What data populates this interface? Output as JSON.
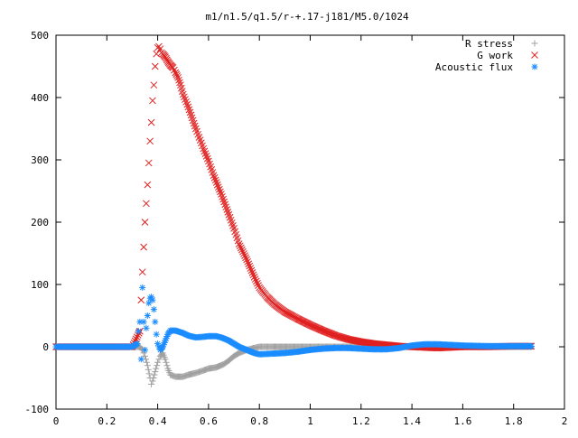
{
  "chart_data": {
    "type": "scatter",
    "title": "m1/n1.5/q1.5/r-+.17-j181/M5.0/1024",
    "xlabel": "",
    "ylabel": "",
    "xlim": [
      0,
      2
    ],
    "ylim": [
      -100,
      500
    ],
    "xticks": [
      0,
      0.2,
      0.4,
      0.6,
      0.8,
      1,
      1.2,
      1.4,
      1.6,
      1.8,
      2
    ],
    "xtick_labels": [
      "0",
      "0.2",
      "0.4",
      "0.6",
      "0.8",
      "1",
      "1.2",
      "1.4",
      "1.6",
      "1.8",
      "2"
    ],
    "yticks": [
      -100,
      0,
      100,
      200,
      300,
      400,
      500
    ],
    "ytick_labels": [
      "-100",
      "0",
      "100",
      "200",
      "300",
      "400",
      "500"
    ],
    "grid": false,
    "legend_position": "top-right",
    "series": [
      {
        "name": "R stress",
        "marker": "plus",
        "color": "#a0a0a0",
        "points": [
          [
            0.0,
            0
          ],
          [
            0.1,
            0
          ],
          [
            0.2,
            0
          ],
          [
            0.3,
            0
          ],
          [
            0.33,
            0
          ],
          [
            0.34,
            -5
          ],
          [
            0.35,
            -15
          ],
          [
            0.36,
            -30
          ],
          [
            0.37,
            -50
          ],
          [
            0.375,
            -60
          ],
          [
            0.38,
            -55
          ],
          [
            0.39,
            -40
          ],
          [
            0.4,
            -25
          ],
          [
            0.41,
            -15
          ],
          [
            0.42,
            -10
          ],
          [
            0.43,
            -20
          ],
          [
            0.44,
            -35
          ],
          [
            0.45,
            -45
          ],
          [
            0.47,
            -48
          ],
          [
            0.5,
            -48
          ],
          [
            0.52,
            -45
          ],
          [
            0.55,
            -42
          ],
          [
            0.58,
            -38
          ],
          [
            0.6,
            -35
          ],
          [
            0.63,
            -33
          ],
          [
            0.66,
            -28
          ],
          [
            0.68,
            -22
          ],
          [
            0.7,
            -15
          ],
          [
            0.72,
            -10
          ],
          [
            0.75,
            -5
          ],
          [
            0.78,
            -2
          ],
          [
            0.8,
            0
          ],
          [
            0.85,
            0
          ],
          [
            0.9,
            0
          ],
          [
            1.0,
            0
          ],
          [
            1.2,
            0
          ],
          [
            1.4,
            0
          ],
          [
            1.6,
            0
          ],
          [
            1.8,
            0
          ],
          [
            1.87,
            0
          ]
        ]
      },
      {
        "name": "G work",
        "marker": "cross",
        "color": "#e02020",
        "points": [
          [
            0.0,
            0
          ],
          [
            0.1,
            0
          ],
          [
            0.2,
            0
          ],
          [
            0.3,
            0
          ],
          [
            0.33,
            25
          ],
          [
            0.335,
            75
          ],
          [
            0.34,
            120
          ],
          [
            0.345,
            160
          ],
          [
            0.35,
            200
          ],
          [
            0.355,
            230
          ],
          [
            0.36,
            260
          ],
          [
            0.365,
            295
          ],
          [
            0.37,
            330
          ],
          [
            0.375,
            360
          ],
          [
            0.38,
            395
          ],
          [
            0.385,
            420
          ],
          [
            0.39,
            450
          ],
          [
            0.395,
            470
          ],
          [
            0.4,
            480
          ],
          [
            0.405,
            482
          ],
          [
            0.41,
            478
          ],
          [
            0.415,
            472
          ],
          [
            0.42,
            470
          ],
          [
            0.43,
            465
          ],
          [
            0.44,
            458
          ],
          [
            0.45,
            452
          ],
          [
            0.46,
            448
          ],
          [
            0.47,
            440
          ],
          [
            0.48,
            432
          ],
          [
            0.49,
            420
          ],
          [
            0.5,
            405
          ],
          [
            0.52,
            385
          ],
          [
            0.55,
            350
          ],
          [
            0.58,
            318
          ],
          [
            0.6,
            298
          ],
          [
            0.62,
            275
          ],
          [
            0.65,
            245
          ],
          [
            0.68,
            212
          ],
          [
            0.7,
            190
          ],
          [
            0.72,
            165
          ],
          [
            0.75,
            140
          ],
          [
            0.78,
            112
          ],
          [
            0.8,
            95
          ],
          [
            0.83,
            80
          ],
          [
            0.86,
            68
          ],
          [
            0.9,
            56
          ],
          [
            0.95,
            45
          ],
          [
            1.0,
            35
          ],
          [
            1.05,
            26
          ],
          [
            1.1,
            18
          ],
          [
            1.15,
            12
          ],
          [
            1.2,
            8
          ],
          [
            1.25,
            5
          ],
          [
            1.3,
            3
          ],
          [
            1.35,
            1
          ],
          [
            1.4,
            0
          ],
          [
            1.45,
            -1
          ],
          [
            1.5,
            -2
          ],
          [
            1.55,
            -1
          ],
          [
            1.6,
            0
          ],
          [
            1.7,
            0
          ],
          [
            1.8,
            1
          ],
          [
            1.87,
            1
          ]
        ]
      },
      {
        "name": "Acoustic flux",
        "marker": "star",
        "color": "#1a8cff",
        "points": [
          [
            0.0,
            0
          ],
          [
            0.1,
            0
          ],
          [
            0.2,
            0
          ],
          [
            0.3,
            0
          ],
          [
            0.32,
            5
          ],
          [
            0.325,
            25
          ],
          [
            0.33,
            40
          ],
          [
            0.335,
            -20
          ],
          [
            0.34,
            95
          ],
          [
            0.345,
            40
          ],
          [
            0.35,
            -5
          ],
          [
            0.355,
            30
          ],
          [
            0.36,
            50
          ],
          [
            0.365,
            70
          ],
          [
            0.37,
            78
          ],
          [
            0.375,
            80
          ],
          [
            0.38,
            75
          ],
          [
            0.385,
            60
          ],
          [
            0.39,
            40
          ],
          [
            0.395,
            20
          ],
          [
            0.4,
            5
          ],
          [
            0.41,
            -5
          ],
          [
            0.42,
            0
          ],
          [
            0.43,
            10
          ],
          [
            0.44,
            20
          ],
          [
            0.45,
            26
          ],
          [
            0.47,
            26
          ],
          [
            0.5,
            22
          ],
          [
            0.52,
            18
          ],
          [
            0.55,
            15
          ],
          [
            0.58,
            16
          ],
          [
            0.6,
            17
          ],
          [
            0.63,
            17
          ],
          [
            0.65,
            15
          ],
          [
            0.68,
            10
          ],
          [
            0.7,
            5
          ],
          [
            0.72,
            0
          ],
          [
            0.75,
            -5
          ],
          [
            0.78,
            -10
          ],
          [
            0.8,
            -12
          ],
          [
            0.85,
            -11
          ],
          [
            0.9,
            -10
          ],
          [
            0.95,
            -8
          ],
          [
            1.0,
            -5
          ],
          [
            1.05,
            -3
          ],
          [
            1.1,
            -2
          ],
          [
            1.15,
            -2
          ],
          [
            1.2,
            -3
          ],
          [
            1.25,
            -4
          ],
          [
            1.3,
            -4
          ],
          [
            1.35,
            -2
          ],
          [
            1.4,
            2
          ],
          [
            1.45,
            4
          ],
          [
            1.5,
            4
          ],
          [
            1.55,
            3
          ],
          [
            1.6,
            2
          ],
          [
            1.7,
            1
          ],
          [
            1.8,
            1
          ],
          [
            1.87,
            1
          ]
        ]
      }
    ]
  }
}
